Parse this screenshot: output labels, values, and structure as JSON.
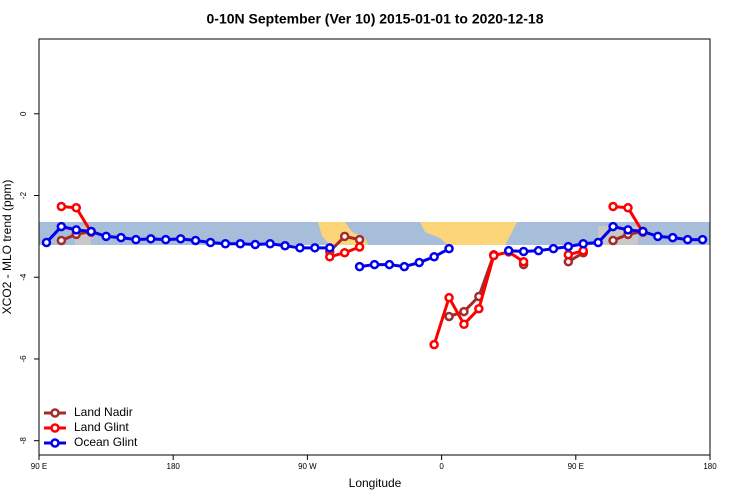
{
  "chart_data": {
    "type": "line",
    "title": "0-10N September (Ver 10)   2015-01-01 to 2020-12-18",
    "xlabel": "Longitude",
    "ylabel": "XCO2 - MLO trend (ppm)",
    "x": [
      95,
      105,
      115,
      125,
      135,
      145,
      155,
      165,
      175,
      185,
      195,
      205,
      215,
      225,
      235,
      245,
      255,
      265,
      275,
      285,
      295,
      305,
      315,
      325,
      335,
      345,
      355,
      365,
      375,
      385,
      395,
      405,
      415,
      425,
      435,
      445,
      455,
      465,
      475,
      485,
      495,
      505,
      515,
      525,
      535
    ],
    "series": [
      {
        "name": "Land Nadir",
        "color": "#a52a2a",
        "values": [
          null,
          -3.1,
          -2.95,
          -2.88,
          null,
          null,
          null,
          null,
          null,
          null,
          null,
          null,
          null,
          null,
          null,
          null,
          null,
          null,
          null,
          -3.37,
          -3.0,
          -3.08,
          null,
          null,
          null,
          null,
          null,
          -4.96,
          -4.84,
          -4.47,
          -3.45,
          null,
          -3.69,
          null,
          null,
          -3.62,
          -3.4,
          null,
          -3.1,
          -2.95,
          -2.88,
          null,
          null,
          null,
          null
        ]
      },
      {
        "name": "Land Glint",
        "color": "#ff0000",
        "values": [
          null,
          -2.27,
          -2.3,
          -2.9,
          null,
          null,
          null,
          null,
          null,
          null,
          null,
          null,
          null,
          null,
          null,
          null,
          null,
          null,
          null,
          -3.5,
          -3.4,
          -3.26,
          null,
          null,
          null,
          null,
          -5.65,
          -4.5,
          -5.15,
          -4.77,
          -3.47,
          -3.38,
          -3.62,
          null,
          null,
          -3.45,
          -3.35,
          null,
          -2.27,
          -2.3,
          -2.9,
          null,
          null,
          null,
          null
        ]
      },
      {
        "name": "Ocean Glint",
        "color": "#0000ee",
        "values": [
          -3.15,
          -2.76,
          -2.84,
          -2.88,
          -3.0,
          -3.03,
          -3.08,
          -3.06,
          -3.08,
          -3.06,
          -3.1,
          -3.15,
          -3.18,
          -3.18,
          -3.2,
          -3.18,
          -3.23,
          -3.28,
          -3.28,
          -3.28,
          null,
          -3.74,
          -3.69,
          -3.69,
          -3.74,
          -3.64,
          -3.5,
          -3.3,
          null,
          null,
          null,
          -3.35,
          -3.37,
          -3.35,
          -3.3,
          -3.25,
          -3.18,
          -3.15,
          -2.76,
          -2.84,
          -2.88,
          -3.0,
          -3.03,
          -3.08,
          -3.08
        ]
      }
    ],
    "xlim": [
      90,
      540
    ],
    "xticks": [
      {
        "value": 90,
        "label": "90 E"
      },
      {
        "value": 180,
        "label": "180"
      },
      {
        "value": 270,
        "label": "90 W"
      },
      {
        "value": 360,
        "label": "0"
      },
      {
        "value": 450,
        "label": "90 E"
      },
      {
        "value": 540,
        "label": "180"
      }
    ],
    "ylim": [
      -8.35,
      1.83
    ],
    "yticks": [
      0,
      -2,
      -4,
      -6,
      -8
    ],
    "legend": "bottom-left"
  }
}
